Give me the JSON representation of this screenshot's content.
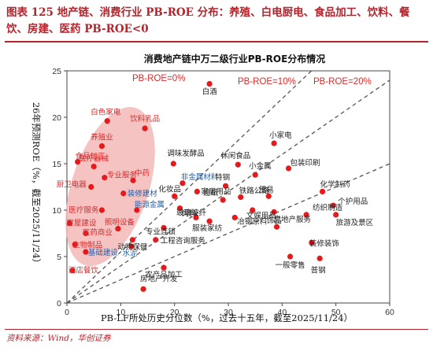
{
  "figure_title": "图表 125 地产链、消费行业 PB-ROE 分布：养殖、白电厨电、食品加工、饮料、餐饮、房建、医药 PB-ROE<0",
  "source": "资料来源：Wind，华创证券",
  "colors": {
    "brand": "#b4232b",
    "point": "#e41a1c",
    "label_blue": "#2a5d9f",
    "ellipse": "#f4b9b9"
  },
  "chart_data": {
    "type": "scatter",
    "title": "消费地产链中万二级行业PB-ROE分布情况",
    "xlabel": "PB-LF所处历史分位数（%，过去十五年，截至2025/11/24）",
    "ylabel": "26年预测ROE（%，截至2025/11/24）",
    "xlim": [
      0,
      60
    ],
    "ylim": [
      0,
      25
    ],
    "xticks": [
      "0",
      "10",
      "20",
      "30",
      "40",
      "50",
      "60"
    ],
    "yticks": [
      "0",
      "5",
      "10",
      "15",
      "20",
      "25"
    ],
    "grid": false,
    "reference_lines": [
      {
        "label": "PB-ROE=0%",
        "slope": 0.25
      },
      {
        "label": "PB-ROE=10%",
        "slope": 0.4
      },
      {
        "label": "PB-ROE=20%",
        "slope": 0.55
      }
    ],
    "highlight_region": "PB-ROE<0",
    "points": [
      {
        "label": "白酒",
        "x": 26.5,
        "y": 23.6
      },
      {
        "label": "白色家电",
        "x": 7.5,
        "y": 19.6
      },
      {
        "label": "饮料乳品",
        "x": 14.5,
        "y": 18.8
      },
      {
        "label": "养殖业",
        "x": 6.5,
        "y": 16.9
      },
      {
        "label": "食品加工",
        "x": 2.0,
        "y": 15.2
      },
      {
        "label": "医疗器械",
        "x": 5.0,
        "y": 14.7
      },
      {
        "label": "专业服务",
        "x": 7.0,
        "y": 13.5
      },
      {
        "label": "厨卫电器",
        "x": 4.5,
        "y": 12.5
      },
      {
        "label": "中药",
        "x": 12.3,
        "y": 13.2
      },
      {
        "label": "装修建材",
        "x": 10.5,
        "y": 11.8,
        "blue": true
      },
      {
        "label": "医疗服务",
        "x": 6.5,
        "y": 10.0
      },
      {
        "label": "能源金属",
        "x": 13.0,
        "y": 10.0,
        "blue": true
      },
      {
        "label": "照明设备",
        "x": 9.5,
        "y": 8.0
      },
      {
        "label": "房屋建设",
        "x": 0.5,
        "y": 8.6
      },
      {
        "label": "医药商业",
        "x": 3.5,
        "y": 7.5
      },
      {
        "label": "生物制品",
        "x": 1.5,
        "y": 6.3
      },
      {
        "label": "基础建设",
        "x": 3.5,
        "y": 5.5,
        "blue": true
      },
      {
        "label": "酒店餐饮",
        "x": 1.0,
        "y": 3.5
      },
      {
        "label": "调味发酵品",
        "x": 19.8,
        "y": 15.0
      },
      {
        "label": "化妆品",
        "x": 20.0,
        "y": 11.5
      },
      {
        "label": "非金属材料",
        "x": 21.5,
        "y": 12.9,
        "blue": true
      },
      {
        "label": "家居用品",
        "x": 24.2,
        "y": 12.0
      },
      {
        "label": "饲料",
        "x": 21.0,
        "y": 10.2
      },
      {
        "label": "玻璃玻纤",
        "x": 24.0,
        "y": 9.2
      },
      {
        "label": "专业连锁",
        "x": 18.0,
        "y": 8.1
      },
      {
        "label": "动物保健",
        "x": 12.2,
        "y": 6.8
      },
      {
        "label": "工程咨询服务",
        "x": 16.5,
        "y": 6.8
      },
      {
        "label": "水泥",
        "x": 12.0,
        "y": 6.1,
        "blue": true
      },
      {
        "label": "农产品加工",
        "x": 18.0,
        "y": 3.8
      },
      {
        "label": "房地产开发",
        "x": 14.2,
        "y": 1.5
      },
      {
        "label": "休闲食品",
        "x": 31.8,
        "y": 14.9
      },
      {
        "label": "小家电",
        "x": 38.5,
        "y": 17.2
      },
      {
        "label": "小金属",
        "x": 35.0,
        "y": 13.8
      },
      {
        "label": "特钢",
        "x": 29.5,
        "y": 12.6
      },
      {
        "label": "铁路公路",
        "x": 32.3,
        "y": 11.4
      },
      {
        "label": "造纸",
        "x": 29.0,
        "y": 11.1
      },
      {
        "label": "包装印刷",
        "x": 41.2,
        "y": 14.5
      },
      {
        "label": "贸易",
        "x": 37.5,
        "y": 11.5
      },
      {
        "label": "文娱用品",
        "x": 34.5,
        "y": 10.0
      },
      {
        "label": "冶钢原料",
        "x": 31.2,
        "y": 9.2
      },
      {
        "label": "服装家纺",
        "x": 26.5,
        "y": 8.8
      },
      {
        "label": "饰品",
        "x": 38.5,
        "y": 9.8
      },
      {
        "label": "纺织制造",
        "x": 44.5,
        "y": 9.5
      },
      {
        "label": "化学制药",
        "x": 47.5,
        "y": 12.0
      },
      {
        "label": "个护用品",
        "x": 49.5,
        "y": 10.5
      },
      {
        "label": "旅游及景区",
        "x": 50.0,
        "y": 9.5
      },
      {
        "label": "房地产服务",
        "x": 39.0,
        "y": 8.2
      },
      {
        "label": "装修装饰",
        "x": 45.5,
        "y": 6.5
      },
      {
        "label": "一般零售",
        "x": 41.5,
        "y": 5.0
      },
      {
        "label": "普钢",
        "x": 47.0,
        "y": 4.8
      }
    ]
  }
}
